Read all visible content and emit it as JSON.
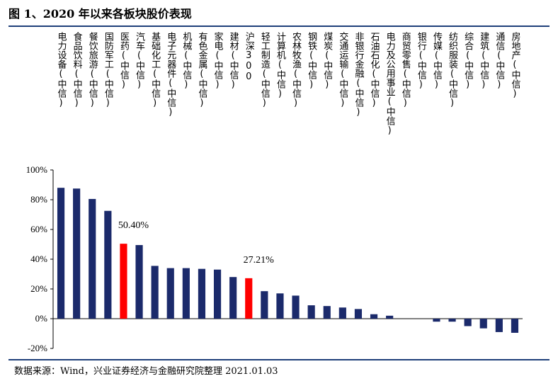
{
  "header": {
    "title": "图 1、2020 年以来各板块股价表现"
  },
  "footer": {
    "source": "数据来源：Wind，兴业证券经济与金融研究院整理 2021.01.03"
  },
  "colors": {
    "bar": "#1b2a6b",
    "highlight": "#ff0000",
    "rule": "#1f3f7a"
  },
  "chart_data": {
    "type": "bar",
    "title": "",
    "xlabel": "",
    "ylabel": "",
    "ylim": [
      -0.2,
      1.0
    ],
    "yticks": [
      {
        "value": 1.0,
        "label": "100%"
      },
      {
        "value": 0.8,
        "label": "80%"
      },
      {
        "value": 0.6,
        "label": "60%"
      },
      {
        "value": 0.4,
        "label": "40%"
      },
      {
        "value": 0.2,
        "label": "20%"
      },
      {
        "value": 0.0,
        "label": "0%"
      },
      {
        "value": -0.2,
        "label": "-20%"
      }
    ],
    "grid": false,
    "categories": [
      "电力设备(中信)",
      "食品饮料(中信)",
      "餐饮旅游(中信)",
      "国防军工(中信)",
      "医药(中信)",
      "汽车(中信)",
      "基础化工(中信)",
      "电子元器件(中信)",
      "机械(中信)",
      "有色金属(中信)",
      "家电(中信)",
      "建材(中信)",
      "沪深300",
      "轻工制造(中信)",
      "计算机(中信)",
      "农林牧渔(中信)",
      "钢铁(中信)",
      "煤炭(中信)",
      "交通运输(中信)",
      "非银行金融(中信)",
      "石油石化(中信)",
      "电力及公用事业(中信)",
      "商贸零售(中信)",
      "银行(中信)",
      "传媒(中信)",
      "纺织服装(中信)",
      "综合(中信)",
      "建筑(中信)",
      "通信(中信)",
      "房地产(中信)"
    ],
    "values": [
      0.88,
      0.875,
      0.805,
      0.725,
      0.504,
      0.495,
      0.355,
      0.34,
      0.34,
      0.335,
      0.33,
      0.28,
      0.2721,
      0.185,
      0.17,
      0.155,
      0.09,
      0.085,
      0.075,
      0.065,
      0.03,
      0.02,
      0.0,
      0.0,
      -0.02,
      -0.02,
      -0.05,
      -0.065,
      -0.09,
      -0.095
    ],
    "highlighted": [
      4,
      12
    ],
    "data_labels": [
      {
        "index": 4,
        "text": "50.40%"
      },
      {
        "index": 12,
        "text": "27.21%"
      }
    ]
  }
}
